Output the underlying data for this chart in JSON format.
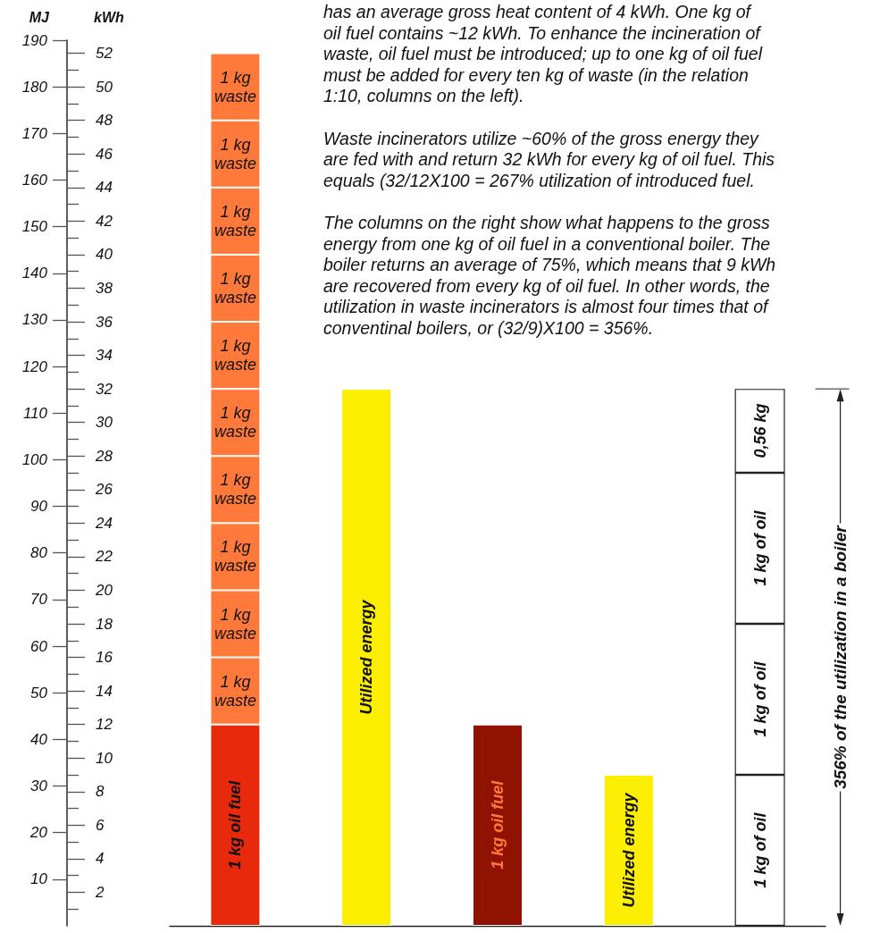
{
  "chart_data": {
    "type": "bar",
    "stacked": true,
    "ylabel": "MJ",
    "y2label": "kWh",
    "categories": [
      null,
      null,
      null,
      null,
      null
    ],
    "ylim": [
      0,
      190
    ],
    "yticks": [
      10,
      20,
      30,
      40,
      50,
      60,
      70,
      80,
      90,
      100,
      110,
      120,
      130,
      140,
      150,
      160,
      170,
      180,
      190
    ],
    "y2lim": [
      0,
      52.78
    ],
    "y2ticks": [
      2,
      4,
      6,
      8,
      10,
      12,
      14,
      16,
      18,
      20,
      22,
      24,
      26,
      28,
      30,
      32,
      34,
      36,
      38,
      40,
      42,
      44,
      46,
      48,
      50,
      52
    ],
    "series": [
      {
        "name": "1 kg oil fuel",
        "values": [
          43.2,
          null,
          43.2,
          null,
          null
        ],
        "colors": [
          "#e8290b",
          null,
          "#8f1300",
          null,
          null
        ]
      },
      {
        "name": "Utilized energy",
        "values": [
          null,
          115.2,
          null,
          32.4,
          null
        ],
        "color": "#fcee00"
      },
      {
        "name": "1 kg of oil",
        "values": [
          null,
          null,
          null,
          null,
          32.4
        ],
        "color": "#ffffff"
      },
      {
        "name": "1 kg of oil",
        "values": [
          null,
          null,
          null,
          null,
          32.4
        ],
        "color": "#ffffff"
      },
      {
        "name": "1 kg of oil",
        "values": [
          null,
          null,
          null,
          null,
          32.4
        ],
        "color": "#ffffff"
      },
      {
        "name": "0,56 kg",
        "values": [
          null,
          null,
          null,
          null,
          18
        ],
        "color": "#ffffff"
      },
      {
        "name": "1 kg waste",
        "values": [
          14.4,
          null,
          null,
          null,
          null
        ],
        "color": "#ff7a3a"
      },
      {
        "name": "1 kg waste",
        "values": [
          14.4,
          null,
          null,
          null,
          null
        ],
        "color": "#ff7a3a"
      },
      {
        "name": "1 kg waste",
        "values": [
          14.4,
          null,
          null,
          null,
          null
        ],
        "color": "#ff7a3a"
      },
      {
        "name": "1 kg waste",
        "values": [
          14.4,
          null,
          null,
          null,
          null
        ],
        "color": "#ff7a3a"
      },
      {
        "name": "1 kg waste",
        "values": [
          14.4,
          null,
          null,
          null,
          null
        ],
        "color": "#ff7a3a"
      },
      {
        "name": "1 kg waste",
        "values": [
          14.4,
          null,
          null,
          null,
          null
        ],
        "color": "#ff7a3a"
      },
      {
        "name": "1 kg waste",
        "values": [
          14.4,
          null,
          null,
          null,
          null
        ],
        "color": "#ff7a3a"
      },
      {
        "name": "1 kg waste",
        "values": [
          14.4,
          null,
          null,
          null,
          null
        ],
        "color": "#ff7a3a"
      },
      {
        "name": "1 kg waste",
        "values": [
          14.4,
          null,
          null,
          null,
          null
        ],
        "color": "#ff7a3a"
      },
      {
        "name": "1 kg waste",
        "values": [
          14.4,
          null,
          null,
          null,
          null
        ],
        "color": "#ff7a3a"
      }
    ],
    "annotations": [
      "has an average gross heat content of 4 kWh. One kg of\noil fuel contains ~12 kWh. To enhance the incineration of\nwaste, oil fuel must be introduced; up to one kg of oil fuel\nmust be added for every ten kg of waste (in the relation\n1:10, columns on the left).\n\nWaste incinerators utilize ~60% of the gross energy they\nare fed with and return 32 kWh for every kg of oil fuel. This\nequals (32/12X100 = 267% utilization of introduced fuel.\n\nThe columns on the right show what happens to the gross\nenergy from one kg of oil fuel in a conventional boiler. The\nboiler returns an average of 75%, which means that 9 kWh\nare recovered from every kg of oil fuel. In other words, the\nutilization in waste incinerators is almost four times that of\nconventinal boilers, or (32/9)X100 = 356%.",
      "356% of the utilization in a boiler"
    ]
  }
}
